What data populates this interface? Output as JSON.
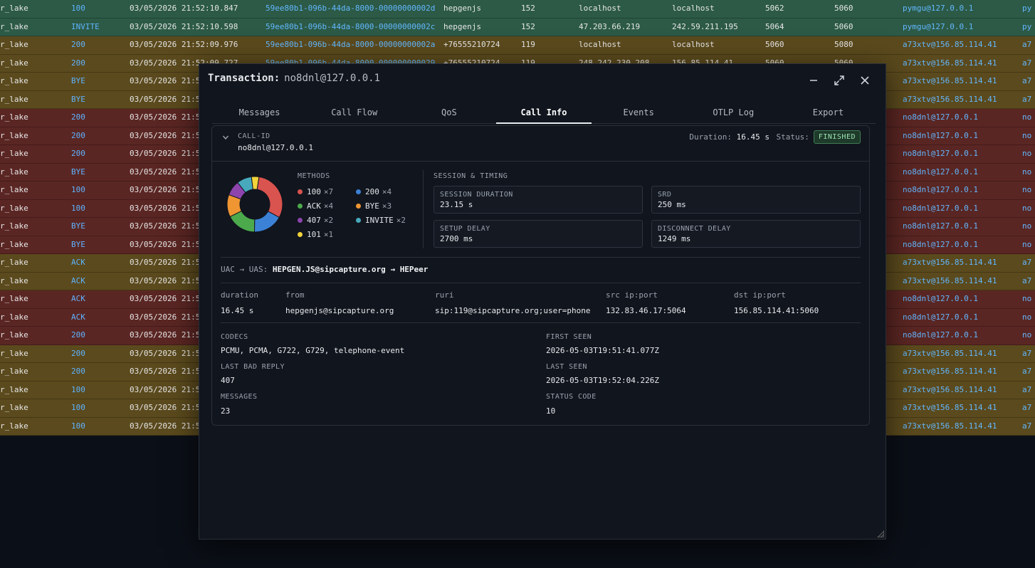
{
  "bg_rows": [
    {
      "cls": "green",
      "src": "r_lake",
      "method": "100",
      "date": "03/05/2026 21:52:10.847",
      "callid": "59ee80b1-096b-44da-8000-00000000002d",
      "from": "hepgenjs",
      "to": "152",
      "srcip": "localhost",
      "dstip": "localhost",
      "sport": "5062",
      "dport": "5060",
      "user": "pymgu@127.0.0.1",
      "user2": "py"
    },
    {
      "cls": "green",
      "src": "r_lake",
      "method": "INVITE",
      "date": "03/05/2026 21:52:10.598",
      "callid": "59ee80b1-096b-44da-8000-00000000002c",
      "from": "hepgenjs",
      "to": "152",
      "srcip": "47.203.66.219",
      "dstip": "242.59.211.195",
      "sport": "5064",
      "dport": "5060",
      "user": "pymgu@127.0.0.1",
      "user2": "py"
    },
    {
      "cls": "olive",
      "src": "r_lake",
      "method": "200",
      "date": "03/05/2026 21:52:09.976",
      "callid": "59ee80b1-096b-44da-8000-00000000002a",
      "from": "+76555210724",
      "to": "119",
      "srcip": "localhost",
      "dstip": "localhost",
      "sport": "5060",
      "dport": "5080",
      "user": "a73xtv@156.85.114.41",
      "user2": "a7"
    },
    {
      "cls": "olive",
      "src": "r_lake",
      "method": "200",
      "date": "03/05/2026 21:52:09.727",
      "callid": "59ee80b1-096b-44da-8000-000000000029",
      "from": "+76555210724",
      "to": "119",
      "srcip": "248.242.230.208",
      "dstip": "156.85.114.41",
      "sport": "5060",
      "dport": "5060",
      "user": "a73xtv@156.85.114.41",
      "user2": "a7"
    },
    {
      "cls": "olive",
      "src": "r_lake",
      "method": "BYE",
      "date": "03/05/2026 21:5",
      "callid": "",
      "from": "",
      "to": "",
      "srcip": "",
      "dstip": "",
      "sport": "",
      "dport": "",
      "user": "a73xtv@156.85.114.41",
      "user2": "a7"
    },
    {
      "cls": "olive",
      "src": "r_lake",
      "method": "BYE",
      "date": "03/05/2026 21:5",
      "callid": "",
      "from": "",
      "to": "",
      "srcip": "",
      "dstip": "",
      "sport": "",
      "dport": "",
      "user": "a73xtv@156.85.114.41",
      "user2": "a7"
    },
    {
      "cls": "red",
      "src": "r_lake",
      "method": "200",
      "date": "03/05/2026 21:5",
      "callid": "",
      "from": "",
      "to": "",
      "srcip": "",
      "dstip": "",
      "sport": "",
      "dport": "",
      "user": "no8dnl@127.0.0.1",
      "user2": "no"
    },
    {
      "cls": "red",
      "src": "r_lake",
      "method": "200",
      "date": "03/05/2026 21:5",
      "callid": "",
      "from": "",
      "to": "",
      "srcip": "",
      "dstip": "",
      "sport": "",
      "dport": "",
      "user": "no8dnl@127.0.0.1",
      "user2": "no"
    },
    {
      "cls": "red",
      "src": "r_lake",
      "method": "200",
      "date": "03/05/2026 21:5",
      "callid": "",
      "from": "",
      "to": "",
      "srcip": "",
      "dstip": "",
      "sport": "",
      "dport": "",
      "user": "no8dnl@127.0.0.1",
      "user2": "no"
    },
    {
      "cls": "red",
      "src": "r_lake",
      "method": "BYE",
      "date": "03/05/2026 21:5",
      "callid": "",
      "from": "",
      "to": "",
      "srcip": "",
      "dstip": "",
      "sport": "",
      "dport": "",
      "user": "no8dnl@127.0.0.1",
      "user2": "no"
    },
    {
      "cls": "red",
      "src": "r_lake",
      "method": "100",
      "date": "03/05/2026 21:5",
      "callid": "",
      "from": "",
      "to": "",
      "srcip": "",
      "dstip": "",
      "sport": "",
      "dport": "",
      "user": "no8dnl@127.0.0.1",
      "user2": "no"
    },
    {
      "cls": "red",
      "src": "r_lake",
      "method": "100",
      "date": "03/05/2026 21:5",
      "callid": "",
      "from": "",
      "to": "",
      "srcip": "",
      "dstip": "",
      "sport": "",
      "dport": "",
      "user": "no8dnl@127.0.0.1",
      "user2": "no"
    },
    {
      "cls": "red",
      "src": "r_lake",
      "method": "BYE",
      "date": "03/05/2026 21:5",
      "callid": "",
      "from": "",
      "to": "",
      "srcip": "",
      "dstip": "",
      "sport": "",
      "dport": "",
      "user": "no8dnl@127.0.0.1",
      "user2": "no"
    },
    {
      "cls": "red",
      "src": "r_lake",
      "method": "BYE",
      "date": "03/05/2026 21:5",
      "callid": "",
      "from": "",
      "to": "",
      "srcip": "",
      "dstip": "",
      "sport": "",
      "dport": "",
      "user": "no8dnl@127.0.0.1",
      "user2": "no"
    },
    {
      "cls": "olive",
      "src": "r_lake",
      "method": "ACK",
      "date": "03/05/2026 21:5",
      "callid": "",
      "from": "",
      "to": "",
      "srcip": "",
      "dstip": "",
      "sport": "",
      "dport": "",
      "user": "a73xtv@156.85.114.41",
      "user2": "a7"
    },
    {
      "cls": "olive",
      "src": "r_lake",
      "method": "ACK",
      "date": "03/05/2026 21:5",
      "callid": "",
      "from": "",
      "to": "",
      "srcip": "",
      "dstip": "",
      "sport": "",
      "dport": "",
      "user": "a73xtv@156.85.114.41",
      "user2": "a7"
    },
    {
      "cls": "red",
      "src": "r_lake",
      "method": "ACK",
      "date": "03/05/2026 21:5",
      "callid": "",
      "from": "",
      "to": "",
      "srcip": "",
      "dstip": "",
      "sport": "",
      "dport": "",
      "user": "no8dnl@127.0.0.1",
      "user2": "no"
    },
    {
      "cls": "red",
      "src": "r_lake",
      "method": "ACK",
      "date": "03/05/2026 21:5",
      "callid": "",
      "from": "",
      "to": "",
      "srcip": "",
      "dstip": "",
      "sport": "",
      "dport": "",
      "user": "no8dnl@127.0.0.1",
      "user2": "no"
    },
    {
      "cls": "red",
      "src": "r_lake",
      "method": "200",
      "date": "03/05/2026 21:5",
      "callid": "",
      "from": "",
      "to": "",
      "srcip": "",
      "dstip": "",
      "sport": "",
      "dport": "",
      "user": "no8dnl@127.0.0.1",
      "user2": "no"
    },
    {
      "cls": "olive",
      "src": "r_lake",
      "method": "200",
      "date": "03/05/2026 21:5",
      "callid": "",
      "from": "",
      "to": "",
      "srcip": "",
      "dstip": "",
      "sport": "",
      "dport": "",
      "user": "a73xtv@156.85.114.41",
      "user2": "a7"
    },
    {
      "cls": "olive",
      "src": "r_lake",
      "method": "200",
      "date": "03/05/2026 21:5",
      "callid": "",
      "from": "",
      "to": "",
      "srcip": "",
      "dstip": "",
      "sport": "",
      "dport": "",
      "user": "a73xtv@156.85.114.41",
      "user2": "a7"
    },
    {
      "cls": "olive",
      "src": "r_lake",
      "method": "100",
      "date": "03/05/2026 21:5",
      "callid": "",
      "from": "",
      "to": "",
      "srcip": "",
      "dstip": "",
      "sport": "",
      "dport": "",
      "user": "a73xtv@156.85.114.41",
      "user2": "a7"
    },
    {
      "cls": "olive",
      "src": "r_lake",
      "method": "100",
      "date": "03/05/2026 21:5",
      "callid": "",
      "from": "",
      "to": "",
      "srcip": "",
      "dstip": "",
      "sport": "",
      "dport": "",
      "user": "a73xtv@156.85.114.41",
      "user2": "a7"
    },
    {
      "cls": "olive",
      "src": "r_lake",
      "method": "100",
      "date": "03/05/2026 21:5",
      "callid": "",
      "from": "",
      "to": "",
      "srcip": "",
      "dstip": "",
      "sport": "",
      "dport": "",
      "user": "a73xtv@156.85.114.41",
      "user2": "a7"
    }
  ],
  "modal": {
    "title": "Transaction:",
    "tx_id": "no8dnl@127.0.0.1",
    "icons": {
      "minimize": "minimize-icon",
      "maximize": "maximize-icon",
      "close": "close-icon"
    }
  },
  "tabs": [
    "Messages",
    "Call Flow",
    "QoS",
    "Call Info",
    "Events",
    "OTLP Log",
    "Export"
  ],
  "active_tab": "Call Info",
  "call": {
    "callid_label": "CALL-ID",
    "callid": "no8dnl@127.0.0.1",
    "duration_label": "Duration:",
    "duration": "16.45 s",
    "status_label": "Status:",
    "status": "FINISHED"
  },
  "methods": {
    "label": "METHODS",
    "items": [
      {
        "name": "100",
        "count": "×7",
        "n": 7,
        "color": "#d9534f"
      },
      {
        "name": "200",
        "count": "×4",
        "n": 4,
        "color": "#3b82d6"
      },
      {
        "name": "ACK",
        "count": "×4",
        "n": 4,
        "color": "#4caa4c"
      },
      {
        "name": "BYE",
        "count": "×3",
        "n": 3,
        "color": "#ef9632"
      },
      {
        "name": "407",
        "count": "×2",
        "n": 2,
        "color": "#8e44ad"
      },
      {
        "name": "INVITE",
        "count": "×2",
        "n": 2,
        "color": "#48a9bd"
      },
      {
        "name": "101",
        "count": "×1",
        "n": 1,
        "color": "#f2d33a"
      }
    ]
  },
  "session": {
    "label": "SESSION & TIMING",
    "session_duration_label": "SESSION DURATION",
    "session_duration": "23.15 s",
    "srd_label": "SRD",
    "srd": "250 ms",
    "setup_delay_label": "SETUP DELAY",
    "setup_delay": "2700 ms",
    "disconnect_delay_label": "DISCONNECT DELAY",
    "disconnect_delay": "1249 ms"
  },
  "uac": {
    "prefix": "UAC → UAS:",
    "from": "HEPGEN.JS@sipcapture.org",
    "arrow": "→",
    "to": "HEPeer"
  },
  "kv": {
    "duration_h": "duration",
    "duration_v": "16.45 s",
    "from_h": "from",
    "from_v": "hepgenjs@sipcapture.org",
    "ruri_h": "ruri",
    "ruri_v": "sip:119@sipcapture.org;user=phone",
    "src_h": "src ip:port",
    "src_v": "132.83.46.17:5064",
    "dst_h": "dst ip:port",
    "dst_v": "156.85.114.41:5060"
  },
  "info": {
    "codecs_label": "CODECS",
    "codecs": "PCMU, PCMA, G722, G729, telephone-event",
    "first_seen_label": "FIRST SEEN",
    "first_seen": "2026-05-03T19:51:41.077Z",
    "last_bad_reply_label": "LAST BAD REPLY",
    "last_bad_reply": "407",
    "last_seen_label": "LAST SEEN",
    "last_seen": "2026-05-03T19:52:04.226Z",
    "messages_label": "MESSAGES",
    "messages": "23",
    "status_code_label": "STATUS CODE",
    "status_code": "10"
  }
}
